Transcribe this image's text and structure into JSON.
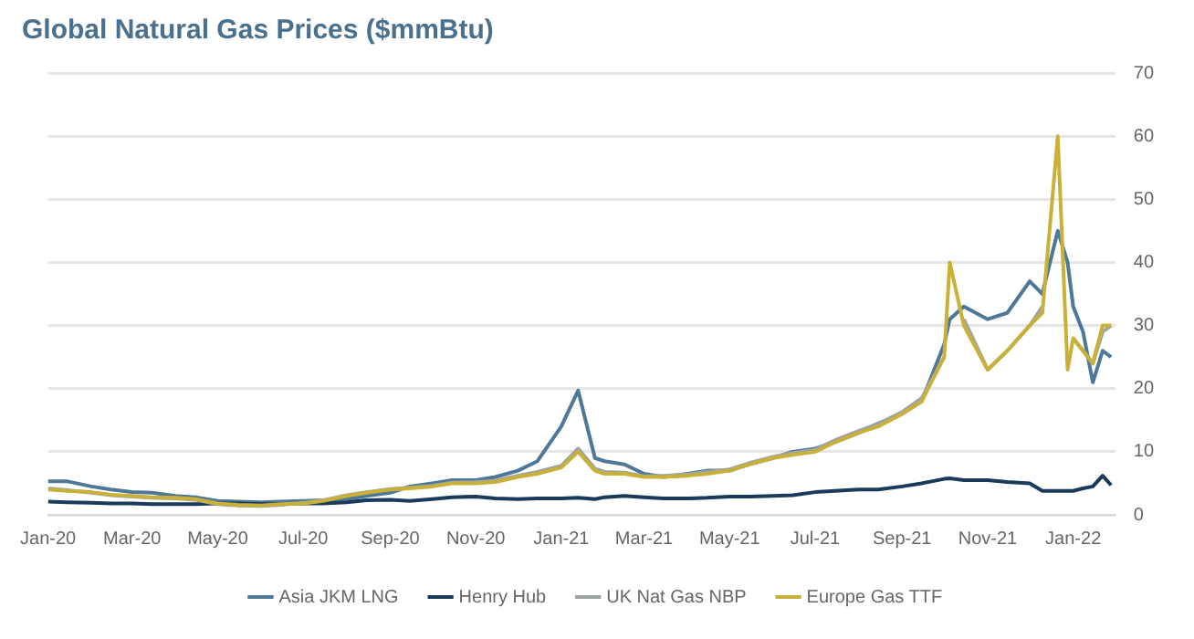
{
  "chart_data": {
    "type": "line",
    "title": "Global Natural Gas Prices ($mmBtu)",
    "x": [
      "2020-01-01",
      "2020-01-15",
      "2020-02-01",
      "2020-02-15",
      "2020-03-01",
      "2020-03-15",
      "2020-04-01",
      "2020-04-15",
      "2020-05-01",
      "2020-05-15",
      "2020-06-01",
      "2020-06-15",
      "2020-07-01",
      "2020-07-15",
      "2020-08-01",
      "2020-08-15",
      "2020-09-01",
      "2020-09-15",
      "2020-10-01",
      "2020-10-15",
      "2020-11-01",
      "2020-11-15",
      "2020-12-01",
      "2020-12-15",
      "2021-01-01",
      "2021-01-13",
      "2021-01-25",
      "2021-02-01",
      "2021-02-15",
      "2021-03-01",
      "2021-03-15",
      "2021-04-01",
      "2021-04-15",
      "2021-05-01",
      "2021-05-15",
      "2021-06-01",
      "2021-06-15",
      "2021-07-01",
      "2021-07-15",
      "2021-08-01",
      "2021-08-15",
      "2021-09-01",
      "2021-09-15",
      "2021-10-01",
      "2021-10-05",
      "2021-10-15",
      "2021-11-01",
      "2021-11-15",
      "2021-12-01",
      "2021-12-10",
      "2021-12-21",
      "2021-12-28",
      "2022-01-01",
      "2022-01-08",
      "2022-01-15",
      "2022-01-22",
      "2022-01-28"
    ],
    "series": [
      {
        "name": "Asia JKM LNG",
        "color": "#4e7898",
        "values": [
          5.3,
          5.3,
          4.5,
          4,
          3.6,
          3.5,
          3,
          2.8,
          2.2,
          2.1,
          2.0,
          2.1,
          2.2,
          2.3,
          2.5,
          3,
          3.5,
          4.5,
          5,
          5.5,
          5.5,
          6,
          7,
          8.5,
          14,
          19.7,
          9,
          8.5,
          8,
          6.5,
          6,
          6.5,
          7,
          7,
          8,
          9,
          10,
          10.5,
          11.5,
          13,
          14.5,
          16,
          18,
          27,
          31,
          33,
          31,
          32,
          37,
          35,
          45,
          40,
          33,
          29,
          21,
          26,
          25
        ]
      },
      {
        "name": "Henry Hub",
        "color": "#1a3a5c",
        "values": [
          2.1,
          2,
          1.9,
          1.8,
          1.8,
          1.7,
          1.7,
          1.7,
          1.8,
          1.8,
          1.7,
          1.7,
          1.8,
          1.8,
          2,
          2.3,
          2.4,
          2.2,
          2.5,
          2.8,
          2.9,
          2.6,
          2.5,
          2.6,
          2.6,
          2.7,
          2.5,
          2.8,
          3,
          2.8,
          2.6,
          2.6,
          2.7,
          2.9,
          2.9,
          3,
          3.1,
          3.6,
          3.8,
          4,
          4,
          4.5,
          5,
          5.7,
          5.8,
          5.5,
          5.5,
          5.2,
          5,
          3.8,
          3.8,
          3.8,
          3.8,
          4.2,
          4.5,
          6.2,
          4.7
        ]
      },
      {
        "name": "UK Nat Gas NBP",
        "color": "#9ea3a6",
        "values": [
          4.2,
          3.9,
          3.5,
          3.1,
          2.9,
          2.7,
          2.6,
          2.4,
          1.7,
          1.5,
          1.4,
          1.6,
          1.9,
          2.3,
          3.1,
          3.6,
          4.1,
          4.3,
          4.6,
          5.1,
          5.2,
          5.4,
          6.2,
          6.8,
          7.8,
          10.5,
          7.3,
          6.8,
          6.7,
          6.1,
          6.2,
          6.4,
          6.8,
          7.2,
          8.2,
          9.2,
          9.8,
          10.3,
          11.8,
          13.3,
          14.4,
          16.3,
          18.5,
          25,
          null,
          31,
          23,
          26,
          30,
          33,
          null,
          null,
          28,
          26,
          24,
          29,
          30
        ]
      },
      {
        "name": "Europe Gas TTF",
        "color": "#c9b037",
        "values": [
          4,
          3.8,
          3.6,
          3.2,
          3,
          2.8,
          2.7,
          2.5,
          1.8,
          1.6,
          1.5,
          1.7,
          1.8,
          2.2,
          3,
          3.5,
          4,
          4.2,
          4.5,
          5,
          5,
          5.2,
          6,
          6.5,
          7.5,
          10,
          7,
          6.5,
          6.5,
          6,
          6,
          6.2,
          6.5,
          7,
          8,
          9,
          9.5,
          10,
          11.5,
          13,
          14,
          16,
          18,
          25,
          40,
          30,
          23,
          26,
          30,
          32,
          60,
          23,
          28,
          26,
          24,
          30,
          30
        ]
      }
    ],
    "xlim": [
      "2020-01-01",
      "2022-01-31"
    ],
    "xticks": [
      {
        "value": "2020-01-01",
        "label": "Jan-20"
      },
      {
        "value": "2020-03-01",
        "label": "Mar-20"
      },
      {
        "value": "2020-05-01",
        "label": "May-20"
      },
      {
        "value": "2020-07-01",
        "label": "Jul-20"
      },
      {
        "value": "2020-09-01",
        "label": "Sep-20"
      },
      {
        "value": "2020-11-01",
        "label": "Nov-20"
      },
      {
        "value": "2021-01-01",
        "label": "Jan-21"
      },
      {
        "value": "2021-03-01",
        "label": "Mar-21"
      },
      {
        "value": "2021-05-01",
        "label": "May-21"
      },
      {
        "value": "2021-07-01",
        "label": "Jul-21"
      },
      {
        "value": "2021-09-01",
        "label": "Sep-21"
      },
      {
        "value": "2021-11-01",
        "label": "Nov-21"
      },
      {
        "value": "2022-01-01",
        "label": "Jan-22"
      }
    ],
    "ylim": [
      0,
      70
    ],
    "yticks": [
      0,
      10,
      20,
      30,
      40,
      50,
      60,
      70
    ],
    "grid": "y",
    "legend": "bottom",
    "marker": "none",
    "line_style": "solid"
  }
}
